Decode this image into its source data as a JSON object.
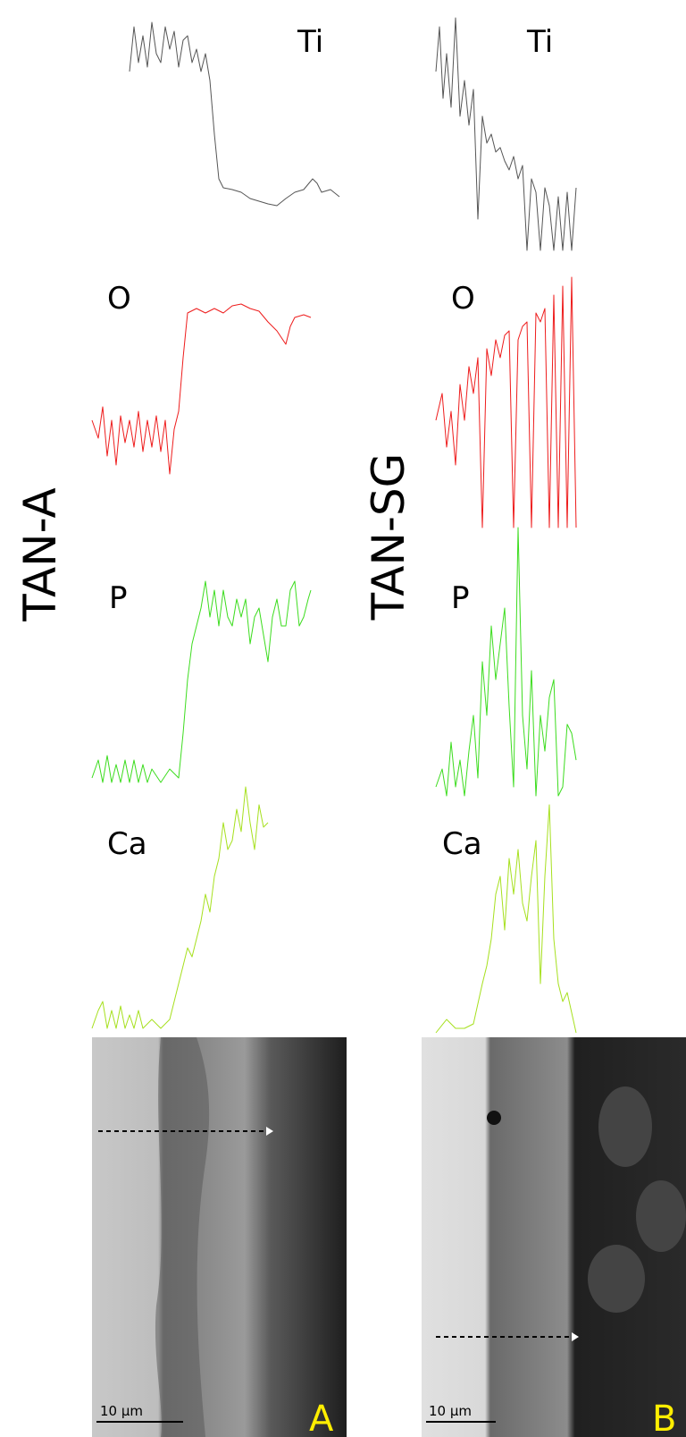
{
  "columns": [
    {
      "label": "TAN-A",
      "elements": [
        "Ti",
        "O",
        "P",
        "Ca"
      ],
      "panel": "A",
      "scale": "10 µm"
    },
    {
      "label": "TAN-SG",
      "elements": [
        "Ti",
        "O",
        "P",
        "Ca"
      ],
      "panel": "B",
      "scale": "10 µm"
    }
  ]
}
